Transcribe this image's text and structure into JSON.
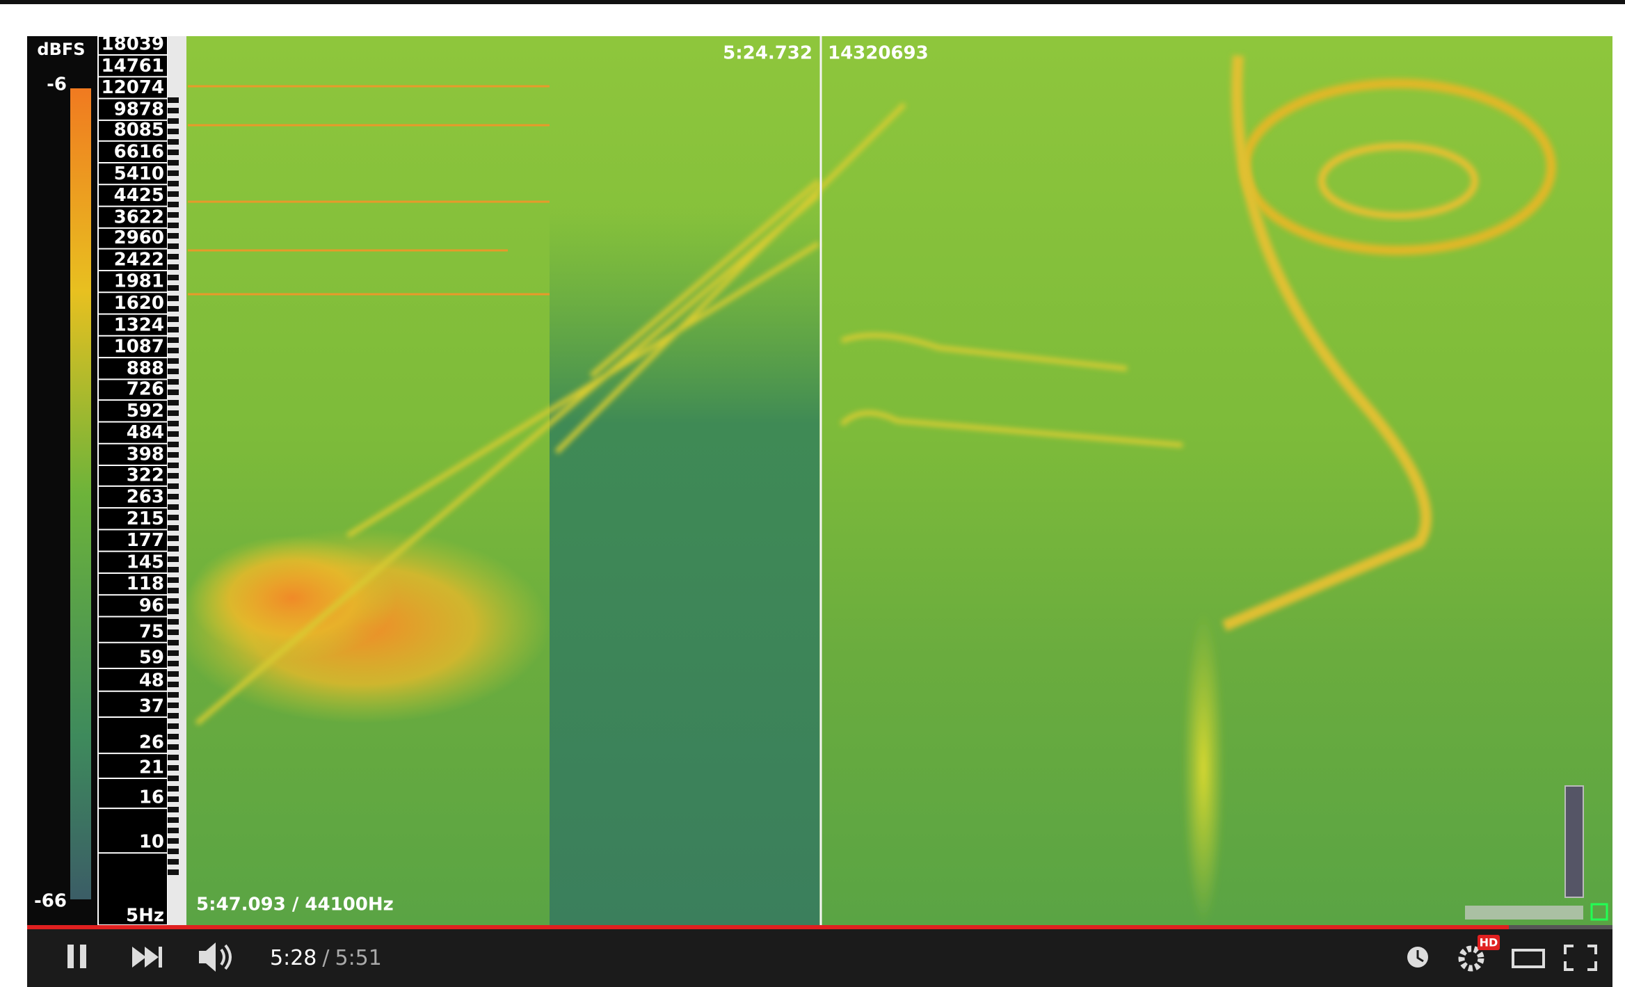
{
  "scale": {
    "unit": "dBFS",
    "top": "-6",
    "bottom": "-66",
    "frequencies": [
      "18039",
      "14761",
      "12074",
      "9878",
      "8085",
      "6616",
      "5410",
      "4425",
      "3622",
      "2960",
      "2422",
      "1981",
      "1620",
      "1324",
      "1087",
      "888",
      "726",
      "592",
      "484",
      "398",
      "322",
      "263",
      "215",
      "177",
      "145",
      "118",
      "96",
      "75",
      "59",
      "48",
      "37",
      "26",
      "21",
      "16",
      "10",
      "5Hz"
    ]
  },
  "overlay": {
    "cursor_time": "5:24.732",
    "sample": "14320693",
    "duration_rate": "5:47.093 / 44100Hz"
  },
  "controls": {
    "current": "5:28",
    "separator": "/",
    "total": "5:51",
    "quality": "HD"
  }
}
